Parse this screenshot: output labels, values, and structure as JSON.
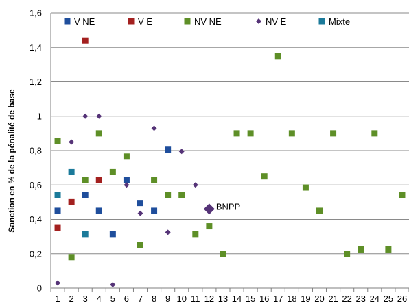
{
  "chart_data": {
    "type": "scatter",
    "xlabel": "",
    "ylabel": "Sanction en % de la pénalité de base",
    "xlim": [
      0.5,
      26.5
    ],
    "ylim": [
      0,
      1.6
    ],
    "x_ticks": [
      1,
      2,
      3,
      4,
      5,
      6,
      7,
      8,
      9,
      10,
      11,
      12,
      13,
      14,
      15,
      16,
      17,
      18,
      19,
      20,
      21,
      22,
      23,
      24,
      25,
      26
    ],
    "y_ticks": [
      0,
      0.2,
      0.4,
      0.6,
      0.8,
      1,
      1.2,
      1.4,
      1.6
    ],
    "y_tick_labels": [
      "0",
      "0,2",
      "0,4",
      "0,6",
      "0,8",
      "1",
      "1,2",
      "1,4",
      "1,6"
    ],
    "grid": "horizontal",
    "legend_position": "top",
    "series": [
      {
        "name": "V NE",
        "color": "#1f4e9c",
        "marker": "square",
        "points": [
          [
            1,
            0.45
          ],
          [
            3,
            0.54
          ],
          [
            4,
            0.45
          ],
          [
            5,
            0.315
          ],
          [
            6,
            0.63
          ],
          [
            7,
            0.495
          ],
          [
            8,
            0.45
          ],
          [
            9,
            0.805
          ]
        ]
      },
      {
        "name": "V E",
        "color": "#a3201f",
        "marker": "square",
        "points": [
          [
            1,
            0.35
          ],
          [
            2,
            0.5
          ],
          [
            3,
            1.44
          ],
          [
            4,
            0.63
          ]
        ]
      },
      {
        "name": "NV NE",
        "color": "#5e8f27",
        "marker": "square",
        "points": [
          [
            1,
            0.855
          ],
          [
            2,
            0.18
          ],
          [
            3,
            0.63
          ],
          [
            4,
            0.9
          ],
          [
            5,
            0.675
          ],
          [
            6,
            0.765
          ],
          [
            7,
            0.25
          ],
          [
            8,
            0.63
          ],
          [
            9,
            0.54
          ],
          [
            10,
            0.54
          ],
          [
            11,
            0.315
          ],
          [
            12,
            0.36
          ],
          [
            13,
            0.2
          ],
          [
            14,
            0.9
          ],
          [
            15,
            0.9
          ],
          [
            16,
            0.65
          ],
          [
            17,
            1.35
          ],
          [
            18,
            0.9
          ],
          [
            19,
            0.585
          ],
          [
            20,
            0.45
          ],
          [
            21,
            0.9
          ],
          [
            22,
            0.2
          ],
          [
            23,
            0.225
          ],
          [
            24,
            0.9
          ],
          [
            25,
            0.225
          ],
          [
            26,
            0.54
          ]
        ]
      },
      {
        "name": "NV E",
        "color": "#553377",
        "marker": "diamond",
        "points": [
          [
            1,
            0.03
          ],
          [
            2,
            0.85
          ],
          [
            3,
            1.0
          ],
          [
            4,
            1.0
          ],
          [
            5,
            0.02
          ],
          [
            6,
            0.6
          ],
          [
            7,
            0.435
          ],
          [
            8,
            0.93
          ],
          [
            9,
            0.325
          ],
          [
            10,
            0.795
          ],
          [
            11,
            0.6
          ]
        ]
      },
      {
        "name": "Mixte",
        "color": "#1b7a9a",
        "marker": "square",
        "points": [
          [
            1,
            0.54
          ],
          [
            2,
            0.675
          ],
          [
            3,
            0.315
          ]
        ]
      }
    ],
    "annotations": [
      {
        "label": "BNPP",
        "x": 12,
        "y": 0.46,
        "color": "#553377",
        "marker": "diamond-large"
      }
    ]
  }
}
